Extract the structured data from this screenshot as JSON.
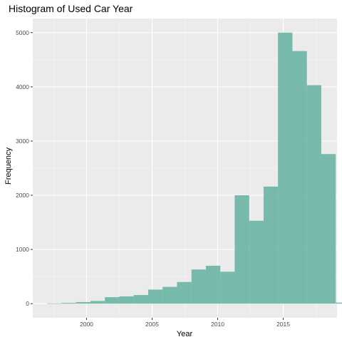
{
  "chart_data": {
    "type": "bar",
    "title": "Histogram of Used Car Year",
    "xlabel": "Year",
    "ylabel": "Frequency",
    "xlim": [
      1995.9,
      2019.1
    ],
    "ylim": [
      -260,
      5260
    ],
    "xticks": [
      2000,
      2005,
      2010,
      2015
    ],
    "yticks": [
      0,
      1000,
      2000,
      3000,
      4000,
      5000
    ],
    "bin_width": 1.1,
    "bins_start": 1997,
    "values": [
      5,
      15,
      30,
      50,
      120,
      135,
      160,
      260,
      310,
      400,
      630,
      700,
      590,
      2000,
      1530,
      2160,
      5000,
      4660,
      4030,
      2760,
      20
    ],
    "colors": {
      "bar": "#66b2a0",
      "panel": "#ebebeb",
      "grid_major": "#ffffff",
      "grid_minor": "#f5f5f5",
      "tick": "#333333"
    },
    "grid": true,
    "legend": "none"
  }
}
